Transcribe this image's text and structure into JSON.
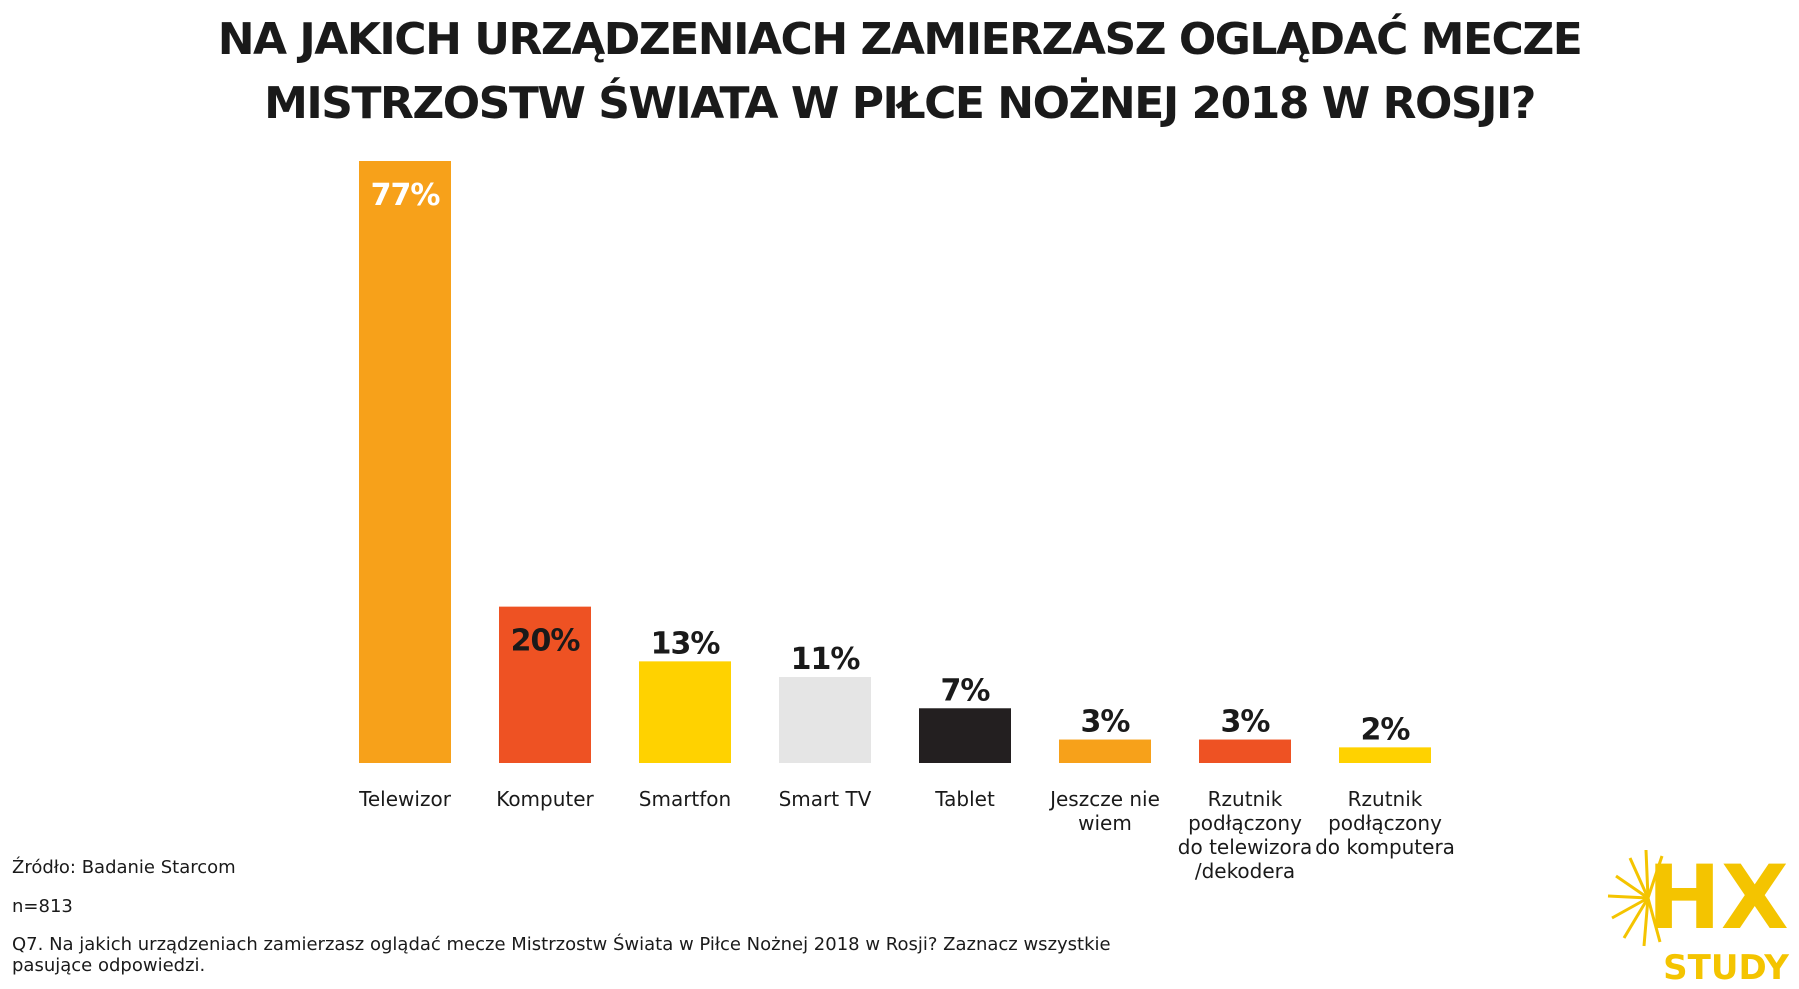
{
  "chart_data": {
    "type": "bar",
    "title": [
      "NA JAKICH URZĄDZENIACH ZAMIERZASZ OGLĄDAĆ MECZE",
      "MISTRZOSTW ŚWIATA W PIŁCE NOŻNEJ 2018 W ROSJI?"
    ],
    "categories": [
      [
        "Telewizor"
      ],
      [
        "Komputer"
      ],
      [
        "Smartfon"
      ],
      [
        "Smart TV"
      ],
      [
        "Tablet"
      ],
      [
        "Jeszcze nie",
        "wiem"
      ],
      [
        "Rzutnik",
        "podłączony",
        "do telewizora",
        "/dekodera"
      ],
      [
        "Rzutnik",
        "podłączony",
        "do komputera"
      ]
    ],
    "values": [
      77,
      20,
      13,
      11,
      7,
      3,
      3,
      2
    ],
    "value_labels": [
      "77%",
      "20%",
      "13%",
      "11%",
      "7%",
      "3%",
      "3%",
      "2%"
    ],
    "colors": [
      "#F7A11A",
      "#EE5223",
      "#FFD200",
      "#E5E5E5",
      "#231F20",
      "#F7A11A",
      "#EE5223",
      "#FFD200"
    ],
    "label_colors": [
      "#ffffff",
      "#1a1a1a",
      "#1a1a1a",
      "#1a1a1a",
      "#1a1a1a",
      "#1a1a1a",
      "#1a1a1a",
      "#1a1a1a"
    ],
    "ylim": [
      0,
      77
    ],
    "xlabel": "",
    "ylabel": "",
    "grid": false,
    "legend": "none"
  },
  "footer": {
    "source": "Źródło: Badanie Starcom",
    "sample": "n=813",
    "question": "Q7. Na jakich urządzeniach zamierzasz oglądać mecze Mistrzostw Świata w Piłce Nożnej 2018 w Rosji? Zaznacz wszystkie pasujące odpowiedzi."
  },
  "logo": {
    "mark": "HX",
    "subtitle": "STUDY",
    "color": "#F4C400"
  }
}
